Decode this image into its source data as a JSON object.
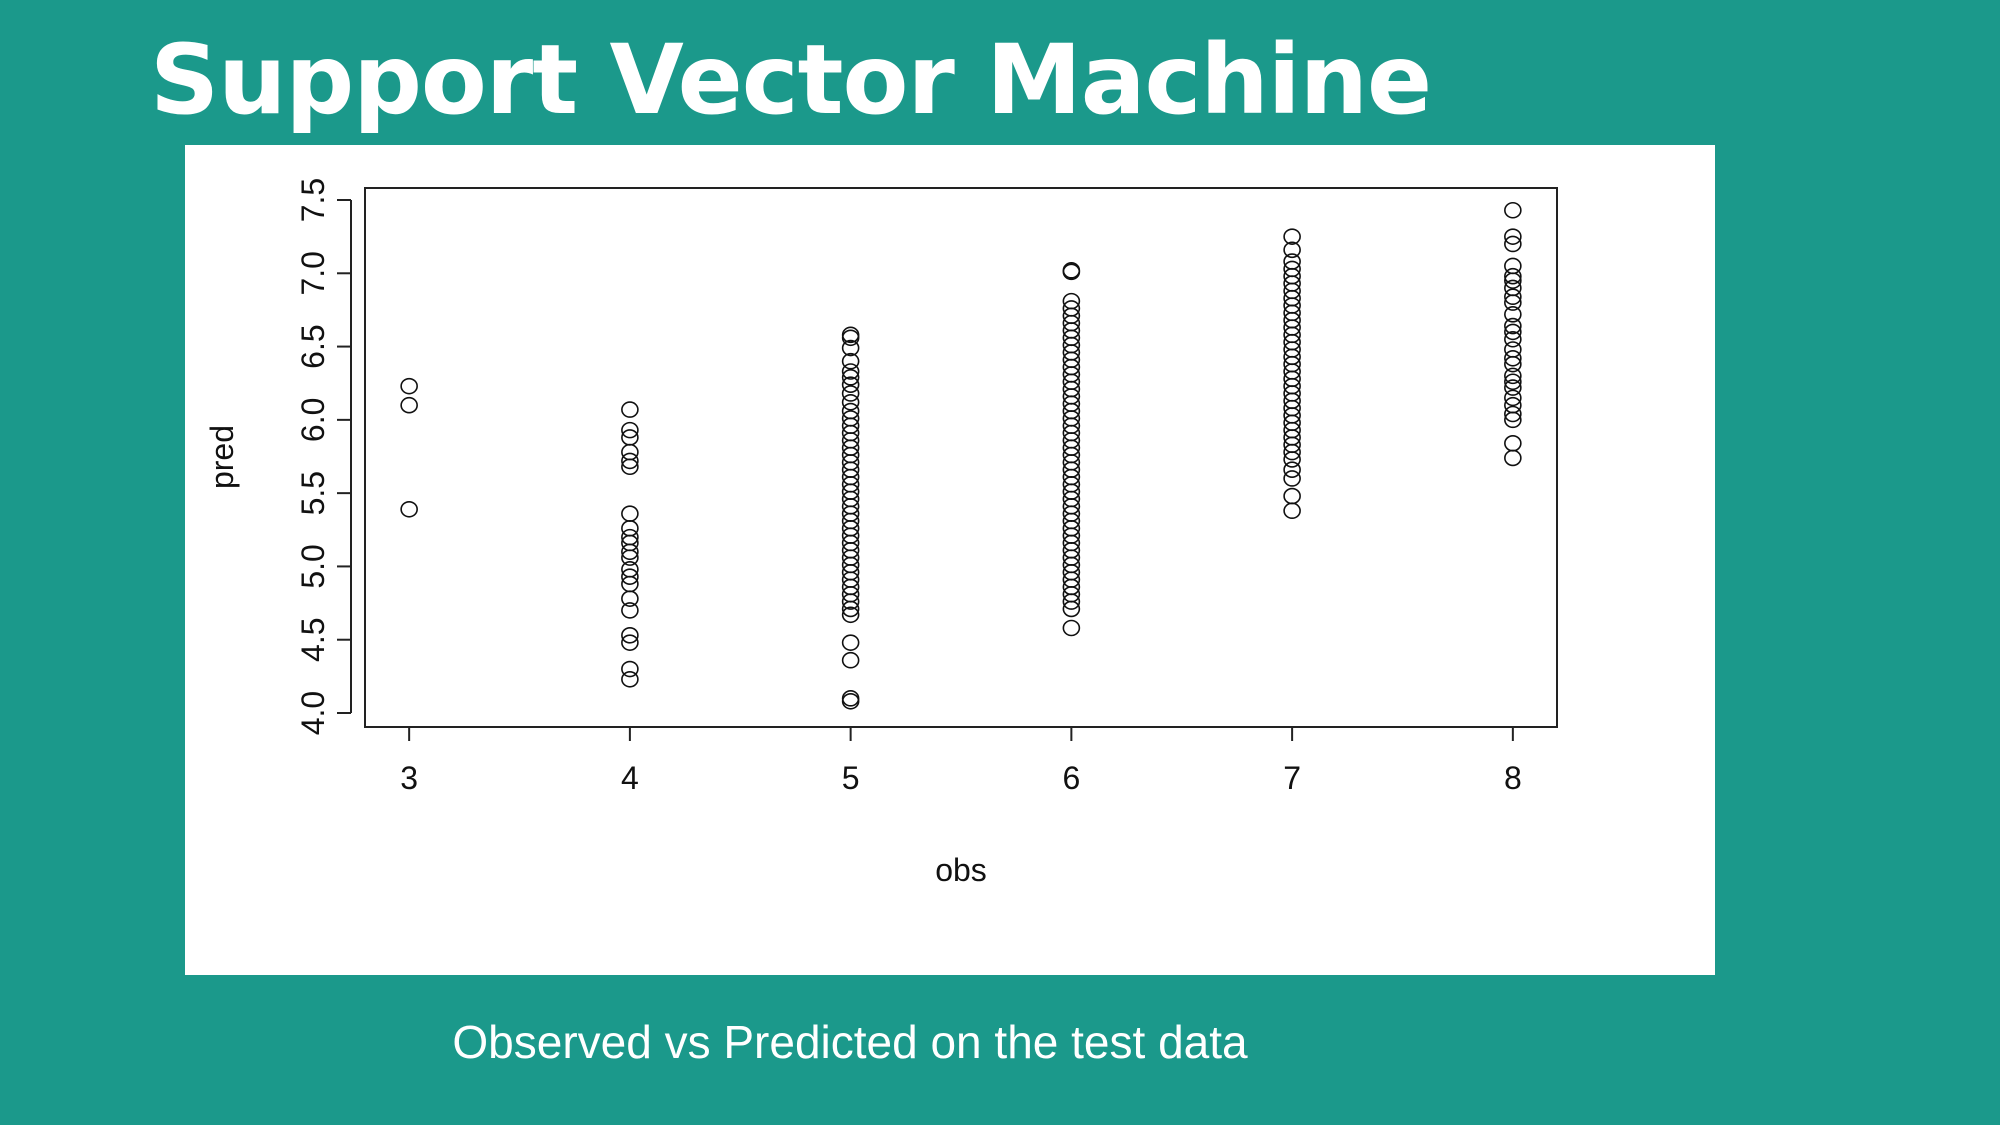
{
  "slide": {
    "title": "Support Vector Machine",
    "caption": "Observed vs Predicted on the test data",
    "background_color": "#1b998b",
    "text_color": "#ffffff"
  },
  "chart_data": {
    "type": "scatter",
    "title": "",
    "xlabel": "obs",
    "ylabel": "pred",
    "xlim": [
      2.8,
      8.2
    ],
    "ylim": [
      4.0,
      7.5
    ],
    "x_ticks": [
      "3",
      "4",
      "5",
      "6",
      "7",
      "8"
    ],
    "y_ticks": [
      "4.0",
      "4.5",
      "5.0",
      "5.5",
      "6.0",
      "6.5",
      "7.0",
      "7.5"
    ],
    "marker": "open-circle",
    "grid": false,
    "points": [
      {
        "x": 3,
        "y": [
          6.23,
          6.1,
          5.39
        ]
      },
      {
        "x": 4,
        "y": [
          6.07,
          5.93,
          5.88,
          5.78,
          5.72,
          5.68,
          5.36,
          5.26,
          5.2,
          5.16,
          5.1,
          5.06,
          4.98,
          4.93,
          4.88,
          4.78,
          4.7,
          4.53,
          4.48,
          4.3,
          4.23
        ]
      },
      {
        "x": 5,
        "y": [
          6.58,
          6.56,
          6.49,
          6.4,
          6.33,
          6.29,
          6.24,
          6.18,
          6.12,
          6.06,
          6.01,
          5.96,
          5.91,
          5.86,
          5.81,
          5.76,
          5.71,
          5.66,
          5.61,
          5.56,
          5.51,
          5.46,
          5.41,
          5.36,
          5.31,
          5.26,
          5.21,
          5.16,
          5.11,
          5.06,
          5.01,
          4.96,
          4.91,
          4.86,
          4.81,
          4.76,
          4.71,
          4.67,
          4.48,
          4.36,
          4.1,
          4.08
        ]
      },
      {
        "x": 6,
        "y": [
          7.02,
          7.01,
          6.81,
          6.76,
          6.71,
          6.66,
          6.61,
          6.56,
          6.51,
          6.46,
          6.41,
          6.36,
          6.31,
          6.26,
          6.21,
          6.16,
          6.11,
          6.06,
          6.01,
          5.96,
          5.91,
          5.86,
          5.81,
          5.76,
          5.71,
          5.66,
          5.61,
          5.56,
          5.51,
          5.46,
          5.41,
          5.36,
          5.31,
          5.26,
          5.21,
          5.16,
          5.11,
          5.06,
          5.01,
          4.96,
          4.91,
          4.86,
          4.81,
          4.76,
          4.71,
          4.58
        ]
      },
      {
        "x": 7,
        "y": [
          7.25,
          7.16,
          7.08,
          7.03,
          6.98,
          6.93,
          6.88,
          6.83,
          6.78,
          6.73,
          6.68,
          6.63,
          6.58,
          6.53,
          6.48,
          6.43,
          6.38,
          6.33,
          6.28,
          6.23,
          6.18,
          6.13,
          6.08,
          6.03,
          5.98,
          5.93,
          5.88,
          5.83,
          5.78,
          5.73,
          5.66,
          5.6,
          5.48,
          5.38
        ]
      },
      {
        "x": 8,
        "y": [
          7.43,
          7.25,
          7.2,
          7.05,
          6.98,
          6.95,
          6.9,
          6.84,
          6.8,
          6.72,
          6.64,
          6.6,
          6.55,
          6.48,
          6.42,
          6.38,
          6.3,
          6.26,
          6.22,
          6.15,
          6.1,
          6.04,
          6.0,
          5.84,
          5.74
        ]
      }
    ]
  }
}
